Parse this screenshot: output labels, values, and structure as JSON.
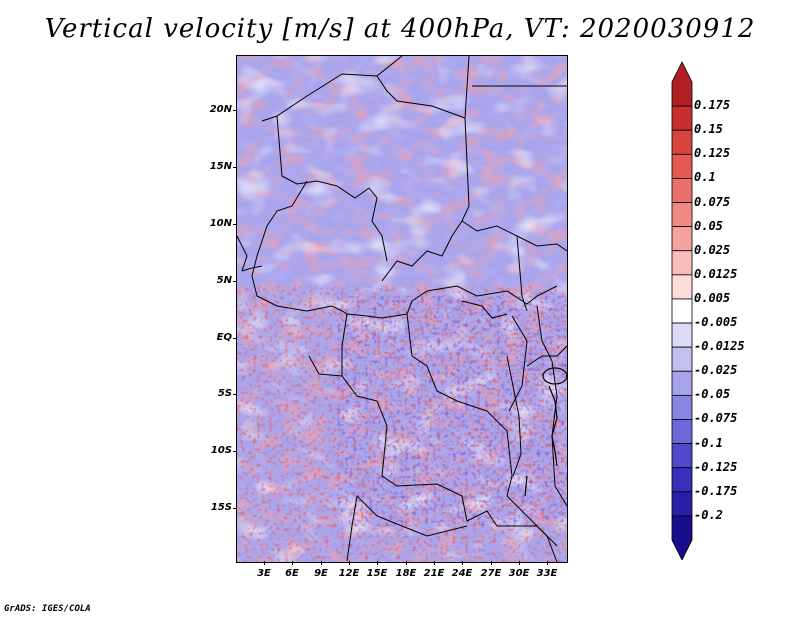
{
  "title": "Vertical velocity [m/s] at 400hPa, VT: 2020030912",
  "credit": "GrADS: IGES/COLA",
  "lat_labels": [
    "20N",
    "15N",
    "10N",
    "5N",
    "EQ",
    "5S",
    "10S",
    "15S"
  ],
  "lon_labels": [
    "3E",
    "6E",
    "9E",
    "12E",
    "15E",
    "18E",
    "21E",
    "24E",
    "27E",
    "30E",
    "33E"
  ],
  "colorbar": {
    "labels": [
      "0.175",
      "0.15",
      "0.125",
      "0.1",
      "0.075",
      "0.05",
      "0.025",
      "0.0125",
      "0.005",
      "-0.005",
      "-0.0125",
      "-0.025",
      "-0.05",
      "-0.075",
      "-0.1",
      "-0.125",
      "-0.175",
      "-0.2"
    ],
    "colors": [
      "#b11f24",
      "#c8302f",
      "#d8453f",
      "#e25a52",
      "#e9716a",
      "#ef8983",
      "#f4a29d",
      "#f8bdb9",
      "#fbdcd9",
      "#ffffff",
      "#dcdaf6",
      "#c3c0f0",
      "#a7a3ea",
      "#8b85e2",
      "#6e67d9",
      "#5148cc",
      "#3a2fbc",
      "#2a1ea9",
      "#1a0e8e"
    ]
  }
}
